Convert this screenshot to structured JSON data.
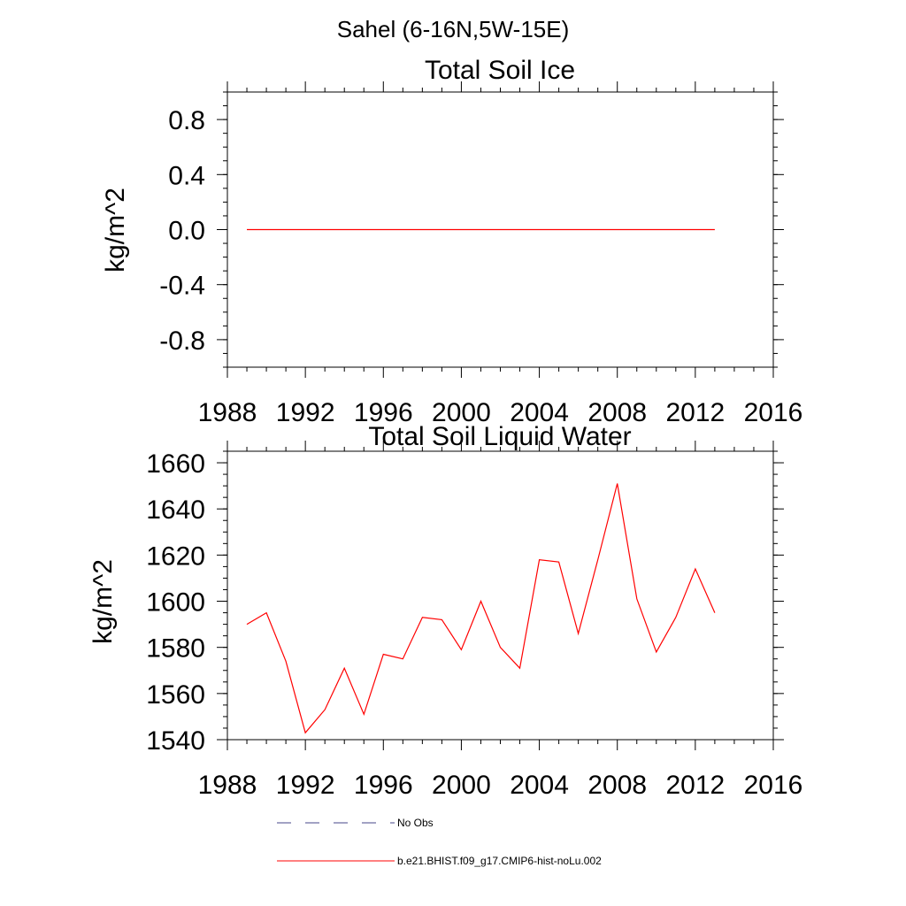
{
  "page": {
    "title": "Sahel (6-16N,5W-15E)"
  },
  "chart_data": [
    {
      "type": "line",
      "title": "Total Soil Ice",
      "xlabel": "",
      "ylabel": "kg/m^2",
      "xlim": [
        1988,
        2016
      ],
      "ylim": [
        -1.0,
        1.0
      ],
      "xticks": [
        1988,
        1992,
        1996,
        2000,
        2004,
        2008,
        2012,
        2016
      ],
      "xtick_labels": [
        "1988",
        "1992",
        "1996",
        "2000",
        "2004",
        "2008",
        "2012",
        "2016"
      ],
      "yticks": [
        -0.8,
        -0.4,
        0.0,
        0.4,
        0.8
      ],
      "ytick_labels": [
        "-0.8",
        "-0.4",
        "0.0",
        "0.4",
        "0.8"
      ],
      "grid": false,
      "series": [
        {
          "name": "b.e21.BHIST.f09_g17.CMIP6-hist-noLu.002",
          "color": "#ff0000",
          "x": [
            1989,
            1990,
            1991,
            1992,
            1993,
            1994,
            1995,
            1996,
            1997,
            1998,
            1999,
            2000,
            2001,
            2002,
            2003,
            2004,
            2005,
            2006,
            2007,
            2008,
            2009,
            2010,
            2011,
            2012,
            2013
          ],
          "y": [
            0,
            0,
            0,
            0,
            0,
            0,
            0,
            0,
            0,
            0,
            0,
            0,
            0,
            0,
            0,
            0,
            0,
            0,
            0,
            0,
            0,
            0,
            0,
            0,
            0
          ]
        }
      ]
    },
    {
      "type": "line",
      "title": "Total Soil Liquid Water",
      "xlabel": "",
      "ylabel": "kg/m^2",
      "xlim": [
        1988,
        2016
      ],
      "ylim": [
        1540,
        1665
      ],
      "xticks": [
        1988,
        1992,
        1996,
        2000,
        2004,
        2008,
        2012,
        2016
      ],
      "xtick_labels": [
        "1988",
        "1992",
        "1996",
        "2000",
        "2004",
        "2008",
        "2012",
        "2016"
      ],
      "yticks": [
        1540,
        1560,
        1580,
        1600,
        1620,
        1640,
        1660
      ],
      "ytick_labels": [
        "1540",
        "1560",
        "1580",
        "1600",
        "1620",
        "1640",
        "1660"
      ],
      "grid": false,
      "series": [
        {
          "name": "b.e21.BHIST.f09_g17.CMIP6-hist-noLu.002",
          "color": "#ff0000",
          "x": [
            1989,
            1990,
            1991,
            1992,
            1993,
            1994,
            1995,
            1996,
            1997,
            1998,
            1999,
            2000,
            2001,
            2002,
            2003,
            2004,
            2005,
            2006,
            2007,
            2008,
            2009,
            2010,
            2011,
            2012,
            2013
          ],
          "y": [
            1590,
            1595,
            1574,
            1543,
            1553,
            1571,
            1551,
            1577,
            1575,
            1593,
            1592,
            1579,
            1600,
            1580,
            1571,
            1618,
            1617,
            1586,
            1618,
            1651,
            1601,
            1578,
            1593,
            1614,
            1595
          ]
        }
      ]
    }
  ],
  "legend": {
    "placement": "bottom",
    "items": [
      {
        "label": "No Obs",
        "style": "dashed",
        "color": "#44448a"
      },
      {
        "label": "b.e21.BHIST.f09_g17.CMIP6-hist-noLu.002",
        "style": "solid",
        "color": "#ff0000"
      }
    ]
  }
}
